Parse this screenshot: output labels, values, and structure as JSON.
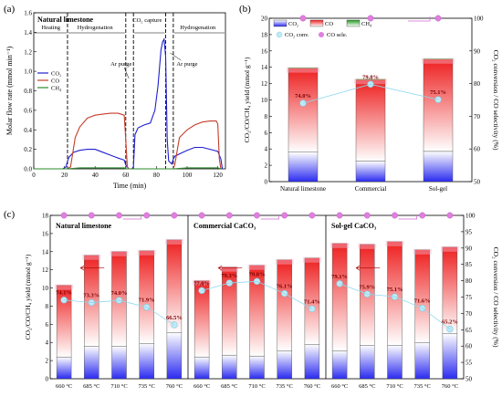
{
  "chart_data": [
    {
      "panel": "(a)",
      "type": "line",
      "title": "Natural limestone",
      "xlabel": "Time (min)",
      "ylabel": "Molar flow rate (mmol min⁻¹)",
      "xlim": [
        0,
        125
      ],
      "ylim": [
        0,
        1.6
      ],
      "xticks": [
        "0",
        "20",
        "40",
        "60",
        "80",
        "100",
        "120"
      ],
      "yticks": [
        "0.0",
        "0.2",
        "0.4",
        "0.6",
        "0.8",
        "1.0",
        "1.2",
        "1.4",
        "1.6"
      ],
      "stages": [
        {
          "label": "Heating",
          "x": 5
        },
        {
          "label": "Hydrogenation",
          "x": 40
        },
        {
          "label": "CO₂ capture",
          "x": 74
        },
        {
          "label": "Hydrogenation",
          "x": 107
        }
      ],
      "purges": [
        {
          "label": "Ar purge",
          "x": 60
        },
        {
          "label": "Ar purge",
          "x": 95
        }
      ],
      "dividers": [
        22,
        60,
        65,
        86,
        91
      ],
      "legend": [
        "CO₂",
        "CO",
        "CH₄"
      ],
      "series": [
        {
          "name": "CO₂",
          "color": "#1f1fd0",
          "points": [
            [
              0,
              0
            ],
            [
              19,
              0
            ],
            [
              21,
              0.02
            ],
            [
              22,
              0.08
            ],
            [
              23,
              0.12
            ],
            [
              26,
              0.17
            ],
            [
              30,
              0.19
            ],
            [
              35,
              0.2
            ],
            [
              40,
              0.2
            ],
            [
              45,
              0.17
            ],
            [
              50,
              0.14
            ],
            [
              55,
              0.11
            ],
            [
              59,
              0.09
            ],
            [
              60,
              0.04
            ],
            [
              62,
              0
            ],
            [
              64,
              0
            ],
            [
              65,
              0.02
            ],
            [
              66,
              0.35
            ],
            [
              68,
              0.42
            ],
            [
              72,
              0.45
            ],
            [
              76,
              0.47
            ],
            [
              79,
              0.6
            ],
            [
              81,
              0.85
            ],
            [
              83,
              1.22
            ],
            [
              84,
              1.3
            ],
            [
              85,
              1.33
            ],
            [
              86,
              1.15
            ],
            [
              87,
              0.3
            ],
            [
              88,
              0.08
            ],
            [
              90,
              0.05
            ],
            [
              91,
              0.1
            ],
            [
              92,
              0.13
            ],
            [
              96,
              0.16
            ],
            [
              100,
              0.19
            ],
            [
              105,
              0.22
            ],
            [
              110,
              0.22
            ],
            [
              115,
              0.2
            ],
            [
              120,
              0.18
            ],
            [
              122,
              0.1
            ],
            [
              123,
              0
            ]
          ]
        },
        {
          "name": "CO",
          "color": "#c43d2a",
          "points": [
            [
              0,
              0
            ],
            [
              22,
              0
            ],
            [
              24,
              0.02
            ],
            [
              27,
              0.32
            ],
            [
              30,
              0.43
            ],
            [
              35,
              0.52
            ],
            [
              40,
              0.55
            ],
            [
              45,
              0.56
            ],
            [
              50,
              0.57
            ],
            [
              55,
              0.57
            ],
            [
              59,
              0.55
            ],
            [
              60,
              0.3
            ],
            [
              61,
              0.02
            ],
            [
              62,
              0
            ],
            [
              91,
              0
            ],
            [
              92,
              0.05
            ],
            [
              95,
              0.32
            ],
            [
              100,
              0.4
            ],
            [
              105,
              0.45
            ],
            [
              110,
              0.48
            ],
            [
              115,
              0.49
            ],
            [
              119,
              0.49
            ],
            [
              120,
              0.46
            ],
            [
              121,
              0.1
            ],
            [
              122,
              0
            ]
          ]
        },
        {
          "name": "CH₄",
          "color": "#2a8a2a",
          "points": [
            [
              0,
              0
            ],
            [
              22,
              0
            ],
            [
              30,
              0.01
            ],
            [
              59,
              0.01
            ],
            [
              60,
              0
            ],
            [
              91,
              0
            ],
            [
              100,
              0.01
            ],
            [
              120,
              0.01
            ],
            [
              122,
              0
            ]
          ]
        }
      ]
    },
    {
      "panel": "(b)",
      "type": "bar",
      "categories": [
        "Natural limestone",
        "Commercial",
        "Sol-gel"
      ],
      "ylabel": "CO₂/CO/CH₄ yield (mmol g⁻¹)",
      "y2label": "CO₂ conversion / CO selectivity (%)",
      "ylim": [
        0,
        20
      ],
      "y2lim": [
        50,
        100
      ],
      "yticks": [
        "0",
        "2",
        "4",
        "6",
        "8",
        "10",
        "12",
        "14",
        "16",
        "18",
        "20"
      ],
      "y2ticks": [
        "50",
        "60",
        "70",
        "80",
        "90",
        "100"
      ],
      "legend": [
        "CO₂",
        "CO",
        "CH₄",
        "CO₂ conv.",
        "CO sele."
      ],
      "series": [
        {
          "name": "CO₂",
          "values": [
            3.6,
            2.5,
            3.7
          ]
        },
        {
          "name": "CO",
          "values": [
            10.3,
            10.0,
            11.3
          ]
        },
        {
          "name": "CH₄",
          "values": [
            0.05,
            0.05,
            0.05
          ]
        }
      ],
      "conversion": [
        74.0,
        79.8,
        75.1
      ],
      "conversion_labels": [
        "74.0%",
        "79.8%",
        "75.1%"
      ],
      "selectivity": [
        100,
        100,
        100
      ]
    },
    {
      "panel": "(c)",
      "type": "bar",
      "ylabel": "CO₂/CO/CH₄ yield (mmol g⁻¹)",
      "y2label": "CO₂ conversion / CO selectivity (%)",
      "ylim": [
        0,
        18
      ],
      "y2lim": [
        50,
        100
      ],
      "yticks": [
        "0",
        "2",
        "4",
        "6",
        "8",
        "10",
        "12",
        "14",
        "16",
        "18"
      ],
      "y2ticks": [
        "50",
        "55",
        "60",
        "65",
        "70",
        "75",
        "80",
        "85",
        "90",
        "95",
        "100"
      ],
      "groups": [
        {
          "title": "Natural limestone",
          "categories": [
            "660 °C",
            "685 °C",
            "710 °C",
            "735 °C",
            "760 °C"
          ],
          "co2": [
            2.4,
            3.6,
            3.6,
            3.9,
            5.1
          ],
          "co": [
            7.9,
            10.0,
            10.4,
            10.2,
            10.2
          ],
          "conversion": [
            74.1,
            73.3,
            74.0,
            71.9,
            66.5
          ],
          "conversion_labels": [
            "74.1%",
            "73.3%",
            "74.0%",
            "71.9%",
            "66.5%"
          ],
          "selectivity": [
            100,
            100,
            100,
            100,
            100
          ]
        },
        {
          "title": "Commercial CaCO₃",
          "categories": [
            "660 °C",
            "685 °C",
            "710 °C",
            "735 °C",
            "760 °C"
          ],
          "co2": [
            2.4,
            2.6,
            2.5,
            3.1,
            3.8
          ],
          "co": [
            8.4,
            9.7,
            10.0,
            10.0,
            9.5
          ],
          "conversion": [
            77.0,
            79.3,
            79.8,
            76.1,
            71.4
          ],
          "conversion_labels": [
            "77.0%",
            "79.3%",
            "79.8%",
            "76.1%",
            "71.4%"
          ],
          "selectivity": [
            100,
            100,
            100,
            100,
            100
          ]
        },
        {
          "title": "Sol-gel CaCO₃",
          "categories": [
            "660 °C",
            "685 °C",
            "710 °C",
            "735 °C",
            "760 °C"
          ],
          "co2": [
            3.1,
            3.7,
            3.7,
            4.0,
            5.0
          ],
          "co": [
            11.8,
            11.1,
            11.4,
            10.2,
            9.5
          ],
          "conversion": [
            79.1,
            75.9,
            75.1,
            71.6,
            65.2
          ],
          "conversion_labels": [
            "79.1%",
            "75.9%",
            "75.1%",
            "71.6%",
            "65.2%"
          ],
          "selectivity": [
            100,
            100,
            100,
            100,
            100
          ]
        }
      ]
    }
  ]
}
